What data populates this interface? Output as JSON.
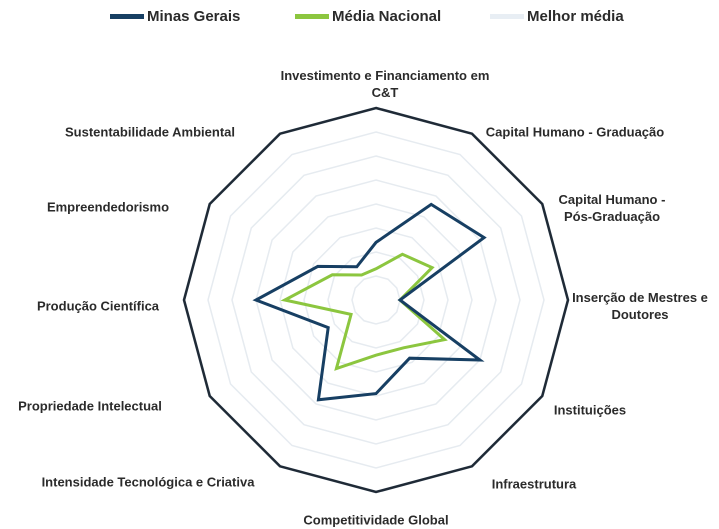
{
  "chart_data": {
    "type": "radar",
    "categories": [
      "Investimento e Financiamento em C&T",
      "Capital Humano - Graduação",
      "Capital Humano - Pós-Graduação",
      "Inserção de Mestres e Doutores",
      "Instituições",
      "Infraestrutura",
      "Competitividade Global",
      "Intensidade Tecnológica e Criativa",
      "Propriedade Intelectual",
      "Produção Científica",
      "Empreendedorismo",
      "Sustentabilidade Ambiental"
    ],
    "series": [
      {
        "name": "Minas Gerais",
        "color": "#173f63",
        "values": [
          2.4,
          4.6,
          5.2,
          1.0,
          5.0,
          2.8,
          3.9,
          4.8,
          2.3,
          5.0,
          2.8,
          1.6
        ]
      },
      {
        "name": "Média Nacional",
        "color": "#8cc63f",
        "values": [
          1.3,
          2.2,
          2.7,
          1.0,
          3.3,
          2.3,
          2.3,
          3.3,
          1.2,
          3.8,
          2.1,
          1.2
        ]
      },
      {
        "name": "Melhor média",
        "color": "#e8eef4",
        "values": [
          8,
          8,
          8,
          8,
          8,
          8,
          8,
          8,
          8,
          8,
          8,
          8
        ]
      }
    ],
    "ylim": [
      0,
      8
    ],
    "yticks": [
      1,
      2,
      3,
      4,
      5,
      6,
      7,
      8
    ],
    "grid": true
  }
}
